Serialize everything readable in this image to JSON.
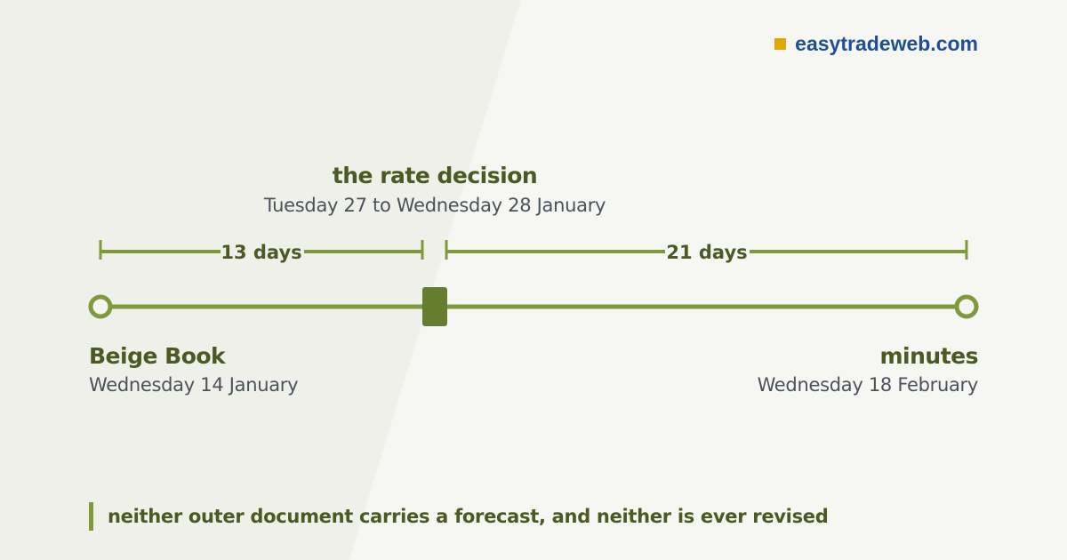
{
  "brand": {
    "name": "easytradeweb.com"
  },
  "colors": {
    "accent": "#7f9a3b",
    "accent_dark": "#667d2f",
    "heading": "#4b5a22",
    "subtext": "#4a525c",
    "brand_text": "#1f4f96",
    "brand_square": "#e0a800"
  },
  "center_event": {
    "title": "the rate decision",
    "date": "Tuesday 27 to Wednesday 28 January"
  },
  "intervals": [
    {
      "label": "13 days"
    },
    {
      "label": "21 days"
    }
  ],
  "events": {
    "left": {
      "title": "Beige Book",
      "date": "Wednesday 14 January"
    },
    "right": {
      "title": "minutes",
      "date": "Wednesday 18 February"
    }
  },
  "footnote": "neither outer document carries a forecast, and neither is ever revised"
}
